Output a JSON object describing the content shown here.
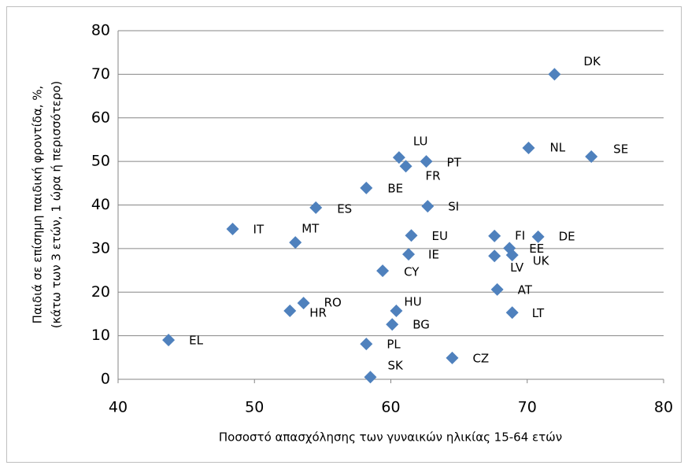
{
  "chart_data": {
    "type": "scatter",
    "x_label": "Ποσοστό απασχόλησης των γυναικών ηλικίας 15-64 ετών",
    "y_label": [
      "Παιδιά σε επίσημη παιδική φροντίδα, %,",
      "(κάτω των 3 ετών, 1 ώρα ή περισσότερο)"
    ],
    "color": "#4f81bd",
    "labels": [
      "DK",
      "NL",
      "SE",
      "LU",
      "FR",
      "PT",
      "BE",
      "ES",
      "SI",
      "IT",
      "MT",
      "EU",
      "IE",
      "FI",
      "DE",
      "EE",
      "LV",
      "UK",
      "CY",
      "AT",
      "RO",
      "HR",
      "HU",
      "LT",
      "BG",
      "EL",
      "PL",
      "CZ",
      "SK"
    ],
    "x": [
      72.0,
      70.1,
      74.7,
      60.6,
      61.1,
      62.6,
      58.2,
      54.5,
      62.7,
      48.4,
      53.0,
      61.5,
      61.3,
      67.6,
      70.8,
      68.7,
      67.6,
      68.9,
      59.4,
      67.8,
      53.6,
      52.6,
      60.4,
      68.9,
      60.1,
      43.7,
      58.2,
      64.5,
      58.5
    ],
    "values": [
      70.0,
      53.1,
      51.1,
      50.9,
      48.9,
      50.0,
      43.9,
      39.4,
      39.7,
      34.5,
      31.4,
      33.0,
      28.7,
      32.9,
      32.7,
      30.1,
      28.3,
      28.5,
      24.9,
      20.6,
      17.5,
      15.7,
      15.7,
      15.3,
      12.6,
      9.0,
      8.1,
      4.9,
      0.5
    ],
    "xlim": [
      40,
      80
    ],
    "xticks": [
      40,
      50,
      60,
      70,
      80
    ],
    "ylim": [
      0,
      80
    ],
    "yticks": [
      0,
      10,
      20,
      30,
      40,
      50,
      60,
      70,
      80
    ],
    "grid": true
  }
}
